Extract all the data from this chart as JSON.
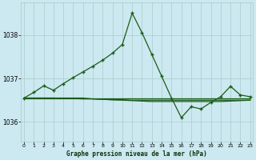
{
  "background_color": "#cce8f0",
  "grid_color": "#aacccc",
  "line_color": "#1a5c1a",
  "title": "Graphe pression niveau de la mer (hPa)",
  "xlim": [
    -0.3,
    23.3
  ],
  "ylim": [
    1035.55,
    1038.75
  ],
  "yticks": [
    1036,
    1037,
    1038
  ],
  "xtick_labels": [
    "0",
    "1",
    "2",
    "3",
    "4",
    "5",
    "6",
    "7",
    "8",
    "9",
    "10",
    "11",
    "12",
    "13",
    "14",
    "15",
    "16",
    "17",
    "18",
    "19",
    "20",
    "21",
    "22",
    "23"
  ],
  "series_main": [
    1036.55,
    1036.68,
    1036.83,
    1036.73,
    1036.88,
    1037.02,
    1037.15,
    1037.28,
    1037.42,
    1037.58,
    1037.78,
    1038.5,
    1038.05,
    1037.55,
    1037.05,
    1036.55,
    1036.1,
    1036.35,
    1036.3,
    1036.45,
    1036.58,
    1036.82,
    1036.62,
    1036.58
  ],
  "series_flat1": [
    1036.55,
    1036.55,
    1036.55,
    1036.55,
    1036.55,
    1036.55,
    1036.55,
    1036.53,
    1036.52,
    1036.51,
    1036.5,
    1036.49,
    1036.48,
    1036.47,
    1036.47,
    1036.47,
    1036.47,
    1036.47,
    1036.47,
    1036.47,
    1036.47,
    1036.48,
    1036.49,
    1036.5
  ],
  "series_flat2": [
    1036.55,
    1036.55,
    1036.55,
    1036.55,
    1036.54,
    1036.54,
    1036.53,
    1036.53,
    1036.52,
    1036.51,
    1036.51,
    1036.5,
    1036.5,
    1036.5,
    1036.5,
    1036.5,
    1036.5,
    1036.5,
    1036.5,
    1036.5,
    1036.5,
    1036.5,
    1036.5,
    1036.5
  ],
  "series_flat3": [
    1036.55,
    1036.55,
    1036.55,
    1036.55,
    1036.55,
    1036.55,
    1036.55,
    1036.55,
    1036.55,
    1036.55,
    1036.55,
    1036.55,
    1036.55,
    1036.55,
    1036.55,
    1036.55,
    1036.55,
    1036.55,
    1036.55,
    1036.55,
    1036.55,
    1036.55,
    1036.55,
    1036.55
  ]
}
